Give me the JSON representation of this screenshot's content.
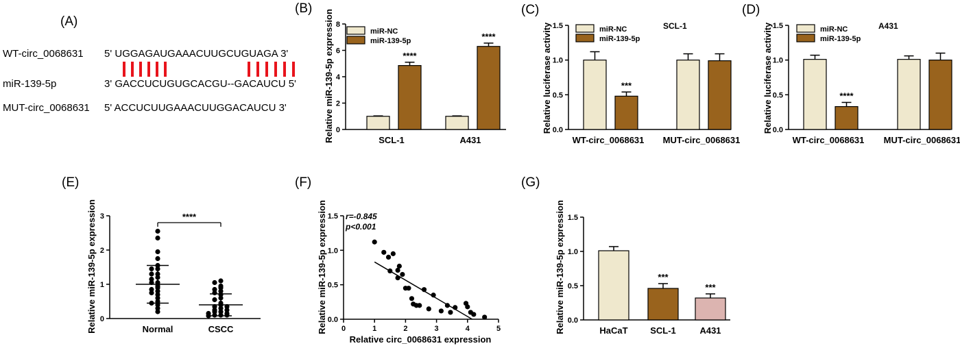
{
  "colors": {
    "nc": "#efe8cd",
    "mir": "#99631d",
    "hacat": "#efe8cd",
    "scl": "#99631d",
    "a431": "#dcb4b0",
    "pair_line": "#e8141c",
    "axis": "#000000"
  },
  "panels": {
    "A": {
      "label": "(A)",
      "rows": [
        {
          "name": "WT-circ_0068631",
          "seq": "5' UGGAGAUGAAACUUGCUGUAGA 3'"
        },
        {
          "name": "miR-139-5p",
          "seq": "3' GACCUCUGUGCACGU--GACAUCU 5'"
        },
        {
          "name": "MUT-circ_0068631",
          "seq": "5' ACCUCUUGAAACUUGGACAUCU 3'"
        }
      ]
    },
    "B": {
      "label": "(B)"
    },
    "C": {
      "label": "(C)"
    },
    "D": {
      "label": "(D)"
    },
    "E": {
      "label": "(E)"
    },
    "F": {
      "label": "(F)"
    },
    "G": {
      "label": "(G)"
    }
  },
  "chart_data": [
    {
      "id": "B",
      "type": "bar",
      "title": "",
      "categories": [
        "SCL-1",
        "A431"
      ],
      "series": [
        {
          "name": "miR-NC",
          "values": [
            1.0,
            1.0
          ],
          "errors": [
            0.03,
            0.03
          ]
        },
        {
          "name": "miR-139-5p",
          "values": [
            4.85,
            6.3
          ],
          "errors": [
            0.25,
            0.25
          ]
        }
      ],
      "significance": [
        [
          "",
          "****"
        ],
        [
          "",
          "****"
        ]
      ],
      "xlabel": "",
      "ylabel": "Relative miR-139-5p expression",
      "ylim": [
        0,
        8
      ],
      "yticks": [
        "0",
        "2",
        "4",
        "6",
        "8"
      ],
      "legend": "top-left"
    },
    {
      "id": "C",
      "type": "bar",
      "title": "SCL-1",
      "categories": [
        "WT-circ_0068631",
        "MUT-circ_0068631"
      ],
      "series": [
        {
          "name": "miR-NC",
          "values": [
            1.0,
            1.0
          ],
          "errors": [
            0.12,
            0.09
          ]
        },
        {
          "name": "miR-139-5p",
          "values": [
            0.48,
            0.99
          ],
          "errors": [
            0.06,
            0.1
          ]
        }
      ],
      "significance": [
        [
          "",
          "***"
        ],
        [
          "",
          ""
        ]
      ],
      "xlabel": "",
      "ylabel": "Relative luciferase activity",
      "ylim": [
        0,
        1.5
      ],
      "yticks": [
        "0.0",
        "0.5",
        "1.0",
        "1.5"
      ],
      "legend": "top-left"
    },
    {
      "id": "D",
      "type": "bar",
      "title": "A431",
      "categories": [
        "WT-circ_0068631",
        "MUT-circ_0068631"
      ],
      "series": [
        {
          "name": "miR-NC",
          "values": [
            1.01,
            1.01
          ],
          "errors": [
            0.06,
            0.05
          ]
        },
        {
          "name": "miR-139-5p",
          "values": [
            0.33,
            1.0
          ],
          "errors": [
            0.06,
            0.1
          ]
        }
      ],
      "significance": [
        [
          "",
          "****"
        ],
        [
          "",
          ""
        ]
      ],
      "xlabel": "",
      "ylabel": "Relative luciferase activity",
      "ylim": [
        0,
        1.5
      ],
      "yticks": [
        "0.0",
        "0.5",
        "1.0",
        "1.5"
      ],
      "legend": "top-left"
    },
    {
      "id": "E",
      "type": "scatter",
      "title": "",
      "categories": [
        "Normal",
        "CSCC"
      ],
      "groups": [
        {
          "name": "Normal",
          "mean": 1.0,
          "sd": 0.55,
          "values": [
            2.55,
            2.35,
            1.95,
            1.75,
            1.55,
            1.45,
            1.45,
            1.3,
            1.3,
            1.2,
            1.15,
            1.05,
            1.05,
            0.95,
            0.9,
            0.85,
            0.8,
            0.75,
            0.7,
            0.6,
            0.5,
            0.45,
            0.4,
            0.3,
            0.2
          ]
        },
        {
          "name": "CSCC",
          "mean": 0.4,
          "sd": 0.32,
          "values": [
            1.1,
            1.05,
            0.95,
            0.9,
            0.85,
            0.8,
            0.75,
            0.7,
            0.6,
            0.55,
            0.45,
            0.4,
            0.35,
            0.35,
            0.3,
            0.25,
            0.25,
            0.2,
            0.2,
            0.15,
            0.15,
            0.1,
            0.1,
            0.1,
            0.08
          ]
        }
      ],
      "significance": "****",
      "xlabel": "",
      "ylabel": "Relative miR-139-5p expression",
      "ylim": [
        0,
        3
      ],
      "yticks": [
        "0",
        "1",
        "2",
        "3"
      ]
    },
    {
      "id": "F",
      "type": "scatter",
      "title": "",
      "annotations": [
        "r=-0.845",
        "p<0.001"
      ],
      "points": [
        [
          1.0,
          1.12
        ],
        [
          1.3,
          0.97
        ],
        [
          1.45,
          0.9
        ],
        [
          1.6,
          0.95
        ],
        [
          1.8,
          0.77
        ],
        [
          1.75,
          0.71
        ],
        [
          1.5,
          0.7
        ],
        [
          1.9,
          0.65
        ],
        [
          1.75,
          0.6
        ],
        [
          2.0,
          0.45
        ],
        [
          2.1,
          0.45
        ],
        [
          2.2,
          0.3
        ],
        [
          2.25,
          0.22
        ],
        [
          2.35,
          0.2
        ],
        [
          2.45,
          0.2
        ],
        [
          2.6,
          0.43
        ],
        [
          2.75,
          0.15
        ],
        [
          2.9,
          0.35
        ],
        [
          3.15,
          0.12
        ],
        [
          3.35,
          0.2
        ],
        [
          3.45,
          0.1
        ],
        [
          3.6,
          0.17
        ],
        [
          3.95,
          0.23
        ],
        [
          4.0,
          0.18
        ],
        [
          4.1,
          0.1
        ],
        [
          4.2,
          0.07
        ],
        [
          4.55,
          0.03
        ]
      ],
      "fit": {
        "x": [
          1.0,
          4.15
        ],
        "y": [
          0.83,
          0.0
        ]
      },
      "xlabel": "Relative circ_0068631 expression",
      "ylabel": "Relative miR-139-5p expression",
      "xlim": [
        0,
        5
      ],
      "ylim": [
        0,
        1.5
      ],
      "xticks": [
        "0",
        "1",
        "2",
        "3",
        "4",
        "5"
      ],
      "yticks": [
        "0.0",
        "0.5",
        "1.0",
        "1.5"
      ]
    },
    {
      "id": "G",
      "type": "bar",
      "title": "",
      "categories": [
        "HaCaT",
        "SCL-1",
        "A431"
      ],
      "values": [
        1.01,
        0.46,
        0.32
      ],
      "errors": [
        0.06,
        0.07,
        0.06
      ],
      "significance": [
        "",
        "***",
        "***"
      ],
      "xlabel": "",
      "ylabel": "Relative miR-139-5p expression",
      "ylim": [
        0,
        1.5
      ],
      "yticks": [
        "0.0",
        "0.5",
        "1.0",
        "1.5"
      ]
    }
  ]
}
